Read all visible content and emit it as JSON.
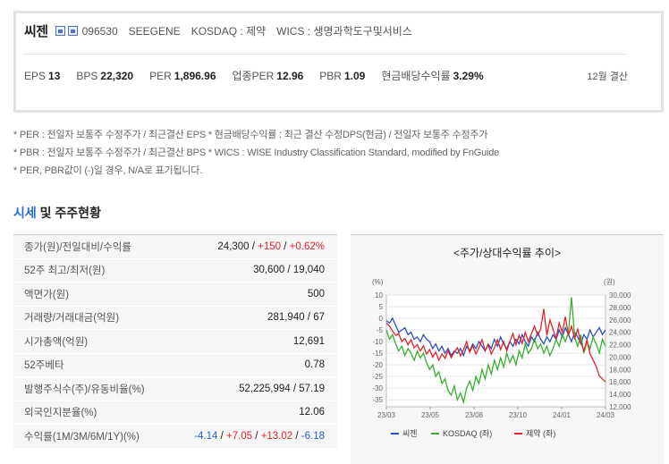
{
  "summary": {
    "company_name": "씨젠",
    "code": "096530",
    "english_name": "SEEGENE",
    "market": "KOSDAQ : 제약",
    "wics": "WICS : 생명과학도구및서비스",
    "stats": [
      {
        "label": "EPS",
        "value": "13"
      },
      {
        "label": "BPS",
        "value": "22,320"
      },
      {
        "label": "PER",
        "value": "1,896.96"
      },
      {
        "label": "업종PER",
        "value": "12.96"
      },
      {
        "label": "PBR",
        "value": "1.09"
      },
      {
        "label": "현금배당수익률",
        "value": "3.29%"
      }
    ],
    "settlement": "12월 결산"
  },
  "notes": [
    "* PER : 전일자 보통주 수정주가 / 최근결산 EPS * 현금배당수익률 : 최근 결산 수정DPS(현금) / 전일자 보통주 수정주가",
    "* PBR : 전일자 보통주 수정주가 / 최근결산 BPS * WICS : WISE Industry Classification Standard, modified by FnGuide",
    "* PER, PBR값이 (-)일 경우, N/A로 표기됩니다."
  ],
  "section": {
    "title_accent": "시세",
    "title_rest": " 및 주주현황"
  },
  "table": {
    "price_label": "종가(원)/전일대비/수익률",
    "price_base": "24,300",
    "price_sep1": " / ",
    "price_change": "+150",
    "price_sep2": " / ",
    "price_rate": "+0.62%",
    "rows": [
      {
        "label": "52주 최고/최저(원)",
        "value": "30,600 / 19,040"
      },
      {
        "label": "액면가(원)",
        "value": "500"
      },
      {
        "label": "거래량/거래대금(억원)",
        "value": "281,940 / 67"
      },
      {
        "label": "시가총액(억원)",
        "value": "12,691"
      },
      {
        "label": "52주베타",
        "value": "0.78"
      },
      {
        "label": "발행주식수(주)/유동비율(%)",
        "value": "52,225,994 / 57.19"
      },
      {
        "label": "외국인지분율(%)",
        "value": "12.06"
      }
    ],
    "returns_label": "수익률(1M/3M/6M/1Y)(%)",
    "returns": [
      {
        "value": "-4.14",
        "dir": "down"
      },
      {
        "value": "+7.05",
        "dir": "up"
      },
      {
        "value": "+13.02",
        "dir": "up"
      },
      {
        "value": "-6.18",
        "dir": "down"
      }
    ]
  },
  "chart_data": {
    "type": "line",
    "title": "<주가/상대수익률 추이>",
    "left_axis_unit": "(%)",
    "right_axis_unit": "(원)",
    "left_ticks": [
      10,
      5,
      0,
      -5,
      -10,
      -15,
      -20,
      -25,
      -30,
      -35
    ],
    "right_ticks": [
      "30,000",
      "28,000",
      "26,000",
      "24,000",
      "22,000",
      "20,000",
      "18,000",
      "16,000",
      "14,000",
      "12,000"
    ],
    "left_range": [
      -38,
      10
    ],
    "right_range": [
      12000,
      30000
    ],
    "x_ticks": [
      "23/03",
      "23/05",
      "23/08",
      "23/10",
      "24/01",
      "24/03"
    ],
    "grid": true,
    "legend_position": "bottom",
    "series": [
      {
        "name": "씨젠",
        "axis": "left",
        "color": "#2c4fc0",
        "values": [
          -1,
          -2,
          0,
          -3,
          -6,
          -5,
          -4,
          -7,
          -6,
          -9,
          -8,
          -10,
          -7,
          -9,
          -10,
          -13,
          -11,
          -14,
          -12,
          -15,
          -13,
          -16,
          -14,
          -15,
          -13,
          -16,
          -12,
          -14,
          -11,
          -13,
          -10,
          -12,
          -14,
          -11,
          -13,
          -9,
          -12,
          -8,
          -11,
          -13,
          -10,
          -12,
          -9,
          -11,
          -7,
          -10,
          -12,
          -8,
          -10,
          -6,
          -9,
          -11,
          -8,
          -10,
          -7,
          -9,
          -5,
          -8,
          -4,
          -7,
          -10,
          -6,
          -8,
          -11,
          -7,
          -9,
          -5,
          -8,
          -6,
          -4,
          -7,
          -5
        ]
      },
      {
        "name": "KOSDAQ (좌)",
        "axis": "left",
        "color": "#36b02f",
        "values": [
          -5,
          -9,
          -7,
          -11,
          -14,
          -12,
          -16,
          -13,
          -15,
          -18,
          -14,
          -17,
          -15,
          -19,
          -22,
          -20,
          -25,
          -23,
          -28,
          -26,
          -31,
          -33,
          -29,
          -35,
          -32,
          -36,
          -30,
          -27,
          -31,
          -25,
          -28,
          -22,
          -26,
          -20,
          -24,
          -18,
          -22,
          -17,
          -21,
          -15,
          -19,
          -16,
          -20,
          -14,
          -17,
          -11,
          -15,
          -13,
          -9,
          -13,
          -11,
          -15,
          -12,
          -16,
          -13,
          -9,
          -12,
          -7,
          -10,
          -6,
          9,
          -8,
          -12,
          -7,
          -15,
          -10,
          -13,
          -8,
          -11,
          -15,
          -9,
          -12
        ]
      },
      {
        "name": "제약 (좌)",
        "axis": "right",
        "color": "#e0242a",
        "values": [
          25500,
          25000,
          24200,
          23500,
          23800,
          22500,
          23000,
          22000,
          22800,
          21500,
          22000,
          21000,
          21800,
          20500,
          21200,
          20000,
          20800,
          19500,
          20500,
          19800,
          21000,
          19900,
          20800,
          21500,
          20200,
          21200,
          22500,
          20800,
          21800,
          20500,
          21500,
          22800,
          21000,
          22000,
          20500,
          21500,
          22800,
          21200,
          22500,
          21000,
          22500,
          23800,
          22000,
          23500,
          22200,
          24000,
          22500,
          23800,
          25000,
          23500,
          24500,
          27800,
          23500,
          26000,
          24500,
          23000,
          25500,
          24000,
          26500,
          23500,
          25000,
          23000,
          24500,
          22500,
          21000,
          22800,
          20500,
          19500,
          18500,
          17000,
          16500,
          16000
        ]
      }
    ]
  }
}
